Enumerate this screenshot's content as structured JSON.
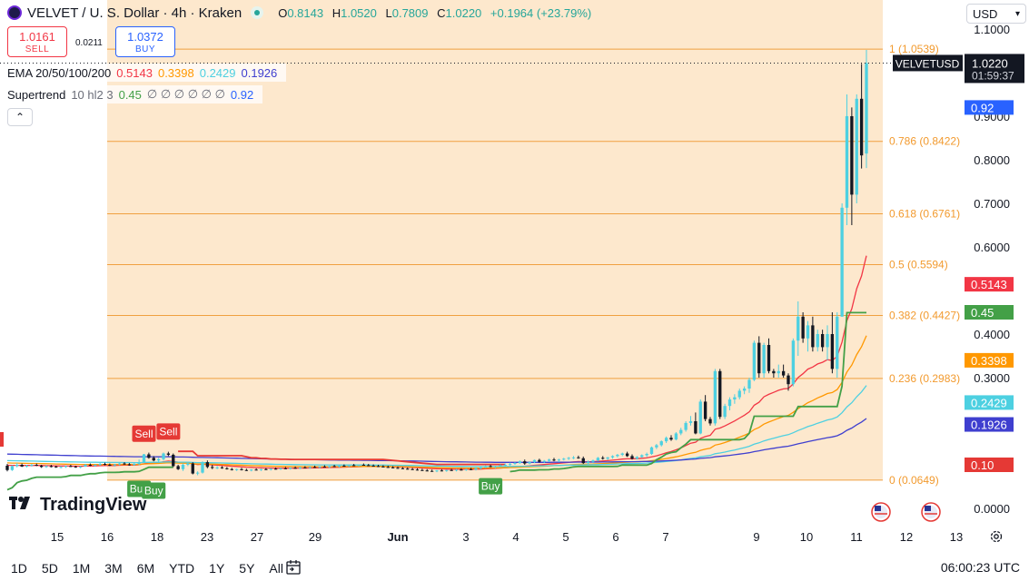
{
  "header": {
    "symbol_title": "VELVET / U. S. Dollar · 4h · Kraken",
    "ohlc": {
      "o_label": "O",
      "o": "0.8143",
      "h_label": "H",
      "h": "1.0520",
      "l_label": "L",
      "l": "0.7809",
      "c_label": "C",
      "c": "1.0220",
      "change": "+0.1964 (+23.79%)"
    },
    "sell_price": "1.0161",
    "sell_label": "SELL",
    "spread": "0.0211",
    "buy_price": "1.0372",
    "buy_label": "BUY"
  },
  "indicators": {
    "ema": {
      "label": "EMA 20/50/100/200",
      "v20": "0.5143",
      "v50": "0.3398",
      "v100": "0.2429",
      "v200": "0.1926",
      "colors": {
        "ema20": "#f23645",
        "ema50": "#ff9800",
        "ema100": "#4dd0e1",
        "ema200": "#3f3fcf"
      }
    },
    "supertrend": {
      "label": "Supertrend",
      "params": "10 hl2 3",
      "up": "0.45",
      "empty": "∅ ∅ ∅ ∅ ∅ ∅",
      "down": "0.92",
      "colors": {
        "up": "#43a047",
        "down": "#2962ff"
      }
    }
  },
  "currency_selector": "USD",
  "symbol_tag": "VELVETUSD",
  "last_price": "1.0220",
  "countdown": "01:59:37",
  "timeframes": [
    "1D",
    "5D",
    "1M",
    "3M",
    "6M",
    "YTD",
    "1Y",
    "5Y",
    "All"
  ],
  "clock": "06:00:23 UTC",
  "brand": "TradingView",
  "colors": {
    "up_candle": "#4dd0e1",
    "down_candle": "#131722",
    "fib_fill": "#fde4c4",
    "fib_line": "#f0a040",
    "fib_text": "#f29a2e",
    "buy_signal": "#43a047",
    "sell_signal": "#e53935"
  },
  "chart_data": {
    "type": "candlestick",
    "price_axis": {
      "ticks": [
        "1.1000",
        "0.9000",
        "0.8000",
        "0.7000",
        "0.6000",
        "0.4000",
        "0.3000",
        "0.0000"
      ]
    },
    "time_axis": {
      "ticks": [
        "15",
        "16",
        "18",
        "23",
        "27",
        "29",
        "Jun",
        "3",
        "4",
        "5",
        "6",
        "7",
        "9",
        "10",
        "11",
        "12",
        "13"
      ]
    },
    "fibonacci": [
      {
        "label": "1 (1.0539)",
        "level": 1.0539
      },
      {
        "label": "0.786 (0.8422)",
        "level": 0.8422
      },
      {
        "label": "0.618 (0.6761)",
        "level": 0.6761
      },
      {
        "label": "0.5 (0.5594)",
        "level": 0.5594
      },
      {
        "label": "0.382 (0.4427)",
        "level": 0.4427
      },
      {
        "label": "0.236 (0.2983)",
        "level": 0.2983
      },
      {
        "label": "0 (0.0649)",
        "level": 0.0649
      }
    ],
    "price_badges": [
      {
        "label": "0.92",
        "value": 0.92,
        "color": "#2962ff"
      },
      {
        "label": "0.5143",
        "value": 0.5143,
        "color": "#f23645"
      },
      {
        "label": "0.45",
        "value": 0.45,
        "color": "#43a047"
      },
      {
        "label": "0.3398",
        "value": 0.3398,
        "color": "#ff9800"
      },
      {
        "label": "0.2429",
        "value": 0.2429,
        "color": "#4dd0e1"
      },
      {
        "label": "0.1926",
        "value": 0.1926,
        "color": "#3f3fcf"
      },
      {
        "label": "0.10",
        "value": 0.1,
        "color": "#e53935"
      }
    ],
    "signals": [
      {
        "label": "Sell",
        "type": "sell",
        "bar": 28,
        "price": 0.14
      },
      {
        "label": "Sell",
        "type": "sell",
        "bar": 33,
        "price": 0.145
      },
      {
        "label": "Buy",
        "type": "buy",
        "bar": 27,
        "price": 0.076
      },
      {
        "label": "Buy",
        "type": "buy",
        "bar": 30,
        "price": 0.072
      },
      {
        "label": "Buy",
        "type": "buy",
        "bar": 99,
        "price": 0.082
      }
    ],
    "candles": [
      [
        0.098,
        0.102,
        0.085,
        0.088
      ],
      [
        0.088,
        0.099,
        0.086,
        0.097
      ],
      [
        0.097,
        0.104,
        0.094,
        0.1
      ],
      [
        0.1,
        0.103,
        0.095,
        0.096
      ],
      [
        0.096,
        0.1,
        0.094,
        0.098
      ],
      [
        0.098,
        0.102,
        0.096,
        0.1
      ],
      [
        0.1,
        0.103,
        0.097,
        0.098
      ],
      [
        0.098,
        0.1,
        0.093,
        0.095
      ],
      [
        0.095,
        0.099,
        0.093,
        0.097
      ],
      [
        0.097,
        0.1,
        0.094,
        0.096
      ],
      [
        0.096,
        0.098,
        0.093,
        0.094
      ],
      [
        0.094,
        0.097,
        0.092,
        0.095
      ],
      [
        0.095,
        0.098,
        0.093,
        0.097
      ],
      [
        0.097,
        0.1,
        0.095,
        0.096
      ],
      [
        0.096,
        0.098,
        0.093,
        0.094
      ],
      [
        0.094,
        0.097,
        0.092,
        0.096
      ],
      [
        0.096,
        0.102,
        0.095,
        0.1
      ],
      [
        0.1,
        0.103,
        0.097,
        0.098
      ],
      [
        0.098,
        0.101,
        0.096,
        0.1
      ],
      [
        0.1,
        0.104,
        0.098,
        0.102
      ],
      [
        0.102,
        0.105,
        0.099,
        0.1
      ],
      [
        0.1,
        0.103,
        0.097,
        0.099
      ],
      [
        0.099,
        0.102,
        0.096,
        0.101
      ],
      [
        0.101,
        0.105,
        0.099,
        0.103
      ],
      [
        0.103,
        0.106,
        0.1,
        0.101
      ],
      [
        0.101,
        0.104,
        0.098,
        0.1
      ],
      [
        0.1,
        0.104,
        0.098,
        0.102
      ],
      [
        0.102,
        0.112,
        0.099,
        0.106
      ],
      [
        0.106,
        0.125,
        0.104,
        0.124
      ],
      [
        0.124,
        0.128,
        0.114,
        0.116
      ],
      [
        0.116,
        0.12,
        0.108,
        0.11
      ],
      [
        0.11,
        0.116,
        0.105,
        0.113
      ],
      [
        0.113,
        0.128,
        0.11,
        0.126
      ],
      [
        0.126,
        0.13,
        0.12,
        0.123
      ],
      [
        0.123,
        0.126,
        0.095,
        0.097
      ],
      [
        0.097,
        0.1,
        0.088,
        0.09
      ],
      [
        0.09,
        0.103,
        0.086,
        0.1
      ],
      [
        0.1,
        0.106,
        0.097,
        0.103
      ],
      [
        0.103,
        0.106,
        0.078,
        0.08
      ],
      [
        0.08,
        0.085,
        0.076,
        0.082
      ],
      [
        0.082,
        0.108,
        0.08,
        0.106
      ],
      [
        0.106,
        0.11,
        0.092,
        0.095
      ],
      [
        0.095,
        0.1,
        0.09,
        0.093
      ],
      [
        0.093,
        0.097,
        0.09,
        0.094
      ],
      [
        0.094,
        0.097,
        0.091,
        0.092
      ],
      [
        0.092,
        0.095,
        0.089,
        0.09
      ],
      [
        0.09,
        0.093,
        0.087,
        0.088
      ],
      [
        0.088,
        0.091,
        0.086,
        0.09
      ],
      [
        0.09,
        0.093,
        0.087,
        0.088
      ],
      [
        0.088,
        0.091,
        0.086,
        0.087
      ],
      [
        0.087,
        0.09,
        0.085,
        0.089
      ],
      [
        0.089,
        0.092,
        0.087,
        0.088
      ],
      [
        0.088,
        0.091,
        0.086,
        0.09
      ],
      [
        0.09,
        0.093,
        0.088,
        0.089
      ],
      [
        0.089,
        0.092,
        0.087,
        0.091
      ],
      [
        0.091,
        0.094,
        0.089,
        0.09
      ],
      [
        0.09,
        0.093,
        0.088,
        0.092
      ],
      [
        0.092,
        0.095,
        0.09,
        0.091
      ],
      [
        0.091,
        0.094,
        0.089,
        0.093
      ],
      [
        0.093,
        0.096,
        0.091,
        0.092
      ],
      [
        0.092,
        0.095,
        0.09,
        0.094
      ],
      [
        0.094,
        0.097,
        0.092,
        0.093
      ],
      [
        0.093,
        0.096,
        0.091,
        0.095
      ],
      [
        0.095,
        0.098,
        0.093,
        0.094
      ],
      [
        0.094,
        0.097,
        0.092,
        0.096
      ],
      [
        0.096,
        0.099,
        0.094,
        0.095
      ],
      [
        0.095,
        0.098,
        0.093,
        0.097
      ],
      [
        0.097,
        0.1,
        0.095,
        0.096
      ],
      [
        0.096,
        0.099,
        0.094,
        0.098
      ],
      [
        0.098,
        0.101,
        0.096,
        0.097
      ],
      [
        0.097,
        0.1,
        0.095,
        0.099
      ],
      [
        0.099,
        0.102,
        0.097,
        0.098
      ],
      [
        0.098,
        0.101,
        0.096,
        0.1
      ],
      [
        0.1,
        0.103,
        0.098,
        0.099
      ],
      [
        0.099,
        0.102,
        0.097,
        0.098
      ],
      [
        0.098,
        0.101,
        0.096,
        0.097
      ],
      [
        0.097,
        0.1,
        0.095,
        0.096
      ],
      [
        0.096,
        0.099,
        0.094,
        0.095
      ],
      [
        0.095,
        0.098,
        0.093,
        0.094
      ],
      [
        0.094,
        0.097,
        0.092,
        0.093
      ],
      [
        0.093,
        0.096,
        0.091,
        0.092
      ],
      [
        0.092,
        0.095,
        0.09,
        0.091
      ],
      [
        0.091,
        0.094,
        0.089,
        0.09
      ],
      [
        0.09,
        0.093,
        0.088,
        0.089
      ],
      [
        0.089,
        0.092,
        0.087,
        0.088
      ],
      [
        0.088,
        0.091,
        0.086,
        0.087
      ],
      [
        0.087,
        0.09,
        0.085,
        0.086
      ],
      [
        0.086,
        0.089,
        0.084,
        0.085
      ],
      [
        0.085,
        0.088,
        0.083,
        0.087
      ],
      [
        0.087,
        0.09,
        0.085,
        0.086
      ],
      [
        0.086,
        0.089,
        0.084,
        0.088
      ],
      [
        0.088,
        0.091,
        0.086,
        0.087
      ],
      [
        0.087,
        0.09,
        0.085,
        0.089
      ],
      [
        0.089,
        0.092,
        0.087,
        0.088
      ],
      [
        0.088,
        0.091,
        0.086,
        0.09
      ],
      [
        0.09,
        0.093,
        0.088,
        0.089
      ],
      [
        0.089,
        0.094,
        0.087,
        0.092
      ],
      [
        0.092,
        0.096,
        0.09,
        0.094
      ],
      [
        0.094,
        0.099,
        0.092,
        0.097
      ],
      [
        0.097,
        0.1,
        0.094,
        0.095
      ],
      [
        0.095,
        0.098,
        0.092,
        0.097
      ],
      [
        0.097,
        0.101,
        0.095,
        0.099
      ],
      [
        0.099,
        0.103,
        0.097,
        0.1
      ],
      [
        0.1,
        0.105,
        0.098,
        0.102
      ],
      [
        0.102,
        0.106,
        0.1,
        0.104
      ],
      [
        0.104,
        0.11,
        0.102,
        0.108
      ],
      [
        0.108,
        0.112,
        0.1,
        0.103
      ],
      [
        0.103,
        0.108,
        0.101,
        0.106
      ],
      [
        0.106,
        0.112,
        0.104,
        0.111
      ],
      [
        0.111,
        0.114,
        0.105,
        0.107
      ],
      [
        0.107,
        0.111,
        0.104,
        0.109
      ],
      [
        0.109,
        0.114,
        0.106,
        0.112
      ],
      [
        0.112,
        0.116,
        0.108,
        0.11
      ],
      [
        0.11,
        0.114,
        0.106,
        0.112
      ],
      [
        0.112,
        0.116,
        0.11,
        0.114
      ],
      [
        0.114,
        0.118,
        0.111,
        0.116
      ],
      [
        0.116,
        0.12,
        0.113,
        0.117
      ],
      [
        0.117,
        0.121,
        0.114,
        0.115
      ],
      [
        0.115,
        0.119,
        0.102,
        0.104
      ],
      [
        0.104,
        0.11,
        0.1,
        0.107
      ],
      [
        0.107,
        0.112,
        0.104,
        0.11
      ],
      [
        0.11,
        0.118,
        0.108,
        0.116
      ],
      [
        0.116,
        0.12,
        0.112,
        0.114
      ],
      [
        0.114,
        0.118,
        0.111,
        0.117
      ],
      [
        0.117,
        0.122,
        0.114,
        0.12
      ],
      [
        0.12,
        0.125,
        0.117,
        0.123
      ],
      [
        0.123,
        0.128,
        0.12,
        0.126
      ],
      [
        0.126,
        0.13,
        0.118,
        0.12
      ],
      [
        0.12,
        0.124,
        0.112,
        0.114
      ],
      [
        0.114,
        0.12,
        0.112,
        0.118
      ],
      [
        0.118,
        0.124,
        0.116,
        0.122
      ],
      [
        0.122,
        0.128,
        0.118,
        0.125
      ],
      [
        0.125,
        0.142,
        0.123,
        0.14
      ],
      [
        0.14,
        0.148,
        0.136,
        0.145
      ],
      [
        0.145,
        0.156,
        0.142,
        0.154
      ],
      [
        0.154,
        0.165,
        0.15,
        0.162
      ],
      [
        0.162,
        0.168,
        0.155,
        0.158
      ],
      [
        0.158,
        0.175,
        0.156,
        0.172
      ],
      [
        0.172,
        0.185,
        0.168,
        0.18
      ],
      [
        0.18,
        0.2,
        0.176,
        0.196
      ],
      [
        0.196,
        0.212,
        0.19,
        0.2
      ],
      [
        0.2,
        0.22,
        0.17,
        0.172
      ],
      [
        0.172,
        0.25,
        0.17,
        0.245
      ],
      [
        0.245,
        0.26,
        0.2,
        0.205
      ],
      [
        0.205,
        0.21,
        0.19,
        0.195
      ],
      [
        0.195,
        0.32,
        0.19,
        0.315
      ],
      [
        0.315,
        0.32,
        0.205,
        0.21
      ],
      [
        0.21,
        0.24,
        0.205,
        0.235
      ],
      [
        0.235,
        0.255,
        0.225,
        0.25
      ],
      [
        0.25,
        0.262,
        0.24,
        0.255
      ],
      [
        0.255,
        0.275,
        0.25,
        0.27
      ],
      [
        0.27,
        0.28,
        0.262,
        0.275
      ],
      [
        0.275,
        0.3,
        0.265,
        0.295
      ],
      [
        0.295,
        0.385,
        0.292,
        0.38
      ],
      [
        0.38,
        0.395,
        0.3,
        0.31
      ],
      [
        0.31,
        0.38,
        0.3,
        0.375
      ],
      [
        0.375,
        0.39,
        0.31,
        0.315
      ],
      [
        0.315,
        0.32,
        0.3,
        0.31
      ],
      [
        0.31,
        0.33,
        0.3,
        0.315
      ],
      [
        0.315,
        0.33,
        0.3,
        0.305
      ],
      [
        0.305,
        0.31,
        0.27,
        0.285
      ],
      [
        0.285,
        0.39,
        0.28,
        0.385
      ],
      [
        0.385,
        0.475,
        0.35,
        0.44
      ],
      [
        0.44,
        0.45,
        0.38,
        0.39
      ],
      [
        0.39,
        0.43,
        0.36,
        0.42
      ],
      [
        0.42,
        0.44,
        0.36,
        0.37
      ],
      [
        0.37,
        0.41,
        0.36,
        0.4
      ],
      [
        0.4,
        0.41,
        0.36,
        0.37
      ],
      [
        0.37,
        0.42,
        0.34,
        0.4
      ],
      [
        0.4,
        0.45,
        0.31,
        0.32
      ],
      [
        0.32,
        0.45,
        0.3,
        0.44
      ],
      [
        0.44,
        0.7,
        0.44,
        0.69
      ],
      [
        0.69,
        0.95,
        0.65,
        0.9
      ],
      [
        0.9,
        0.92,
        0.65,
        0.72
      ],
      [
        0.72,
        0.95,
        0.7,
        0.94
      ],
      [
        0.94,
        1.02,
        0.78,
        0.81
      ],
      [
        0.8143,
        1.052,
        0.7809,
        1.022
      ]
    ]
  }
}
